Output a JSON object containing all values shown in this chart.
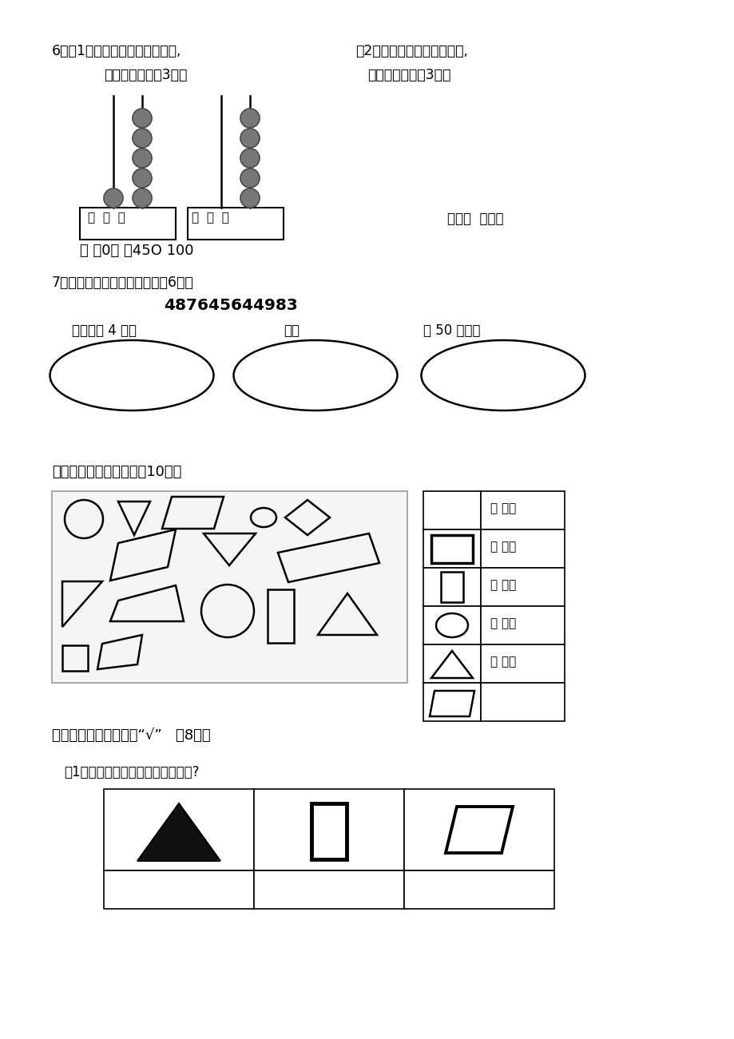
{
  "bg_color": "#ffffff",
  "text_color": "#000000",
  "section6_title": "6、（1）根据计数器先写出得数,",
  "section6_sub1": "再比较大小。（3分）",
  "section6_title2": "（2）在计数器上先画出算珠,",
  "section6_sub2": "再比较大小。（3分）",
  "section6_right_label": "百十个  百十个",
  "section6_answer": "（ ）0（ ）45O 100",
  "section7_title": "7、选择合适的数填在圈里。（6分）",
  "section7_numbers": "487645644983",
  "label1": "十位上是 4 的数",
  "label2": "单数",
  "label3": "比 50 大的数",
  "section3_title": "三、数一数，填一填。（10分）",
  "section4_title": "四、在正确答案下面画“√”   （8分）",
  "section4_q1": "（1）用两个可以拼成下面哪个图形?",
  "right_table_labels": [
    "（ ）个",
    "（ ）个",
    "（ ）个",
    "（ ）个",
    "（ ）个"
  ]
}
